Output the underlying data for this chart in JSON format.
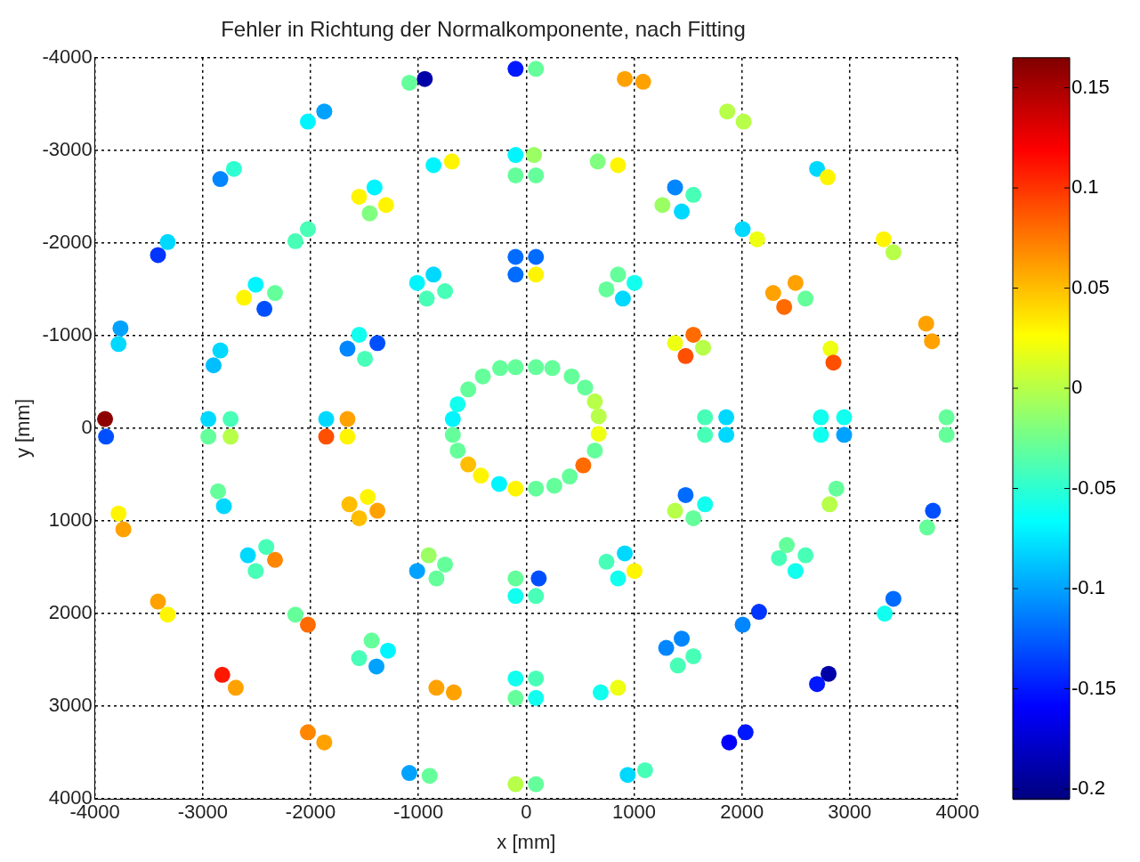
{
  "chart_data": {
    "type": "scatter",
    "title": "Fehler in Richtung der Normalkomponente, nach Fitting",
    "xlabel": "x [mm]",
    "ylabel": "y [mm]",
    "xlim": [
      -4000,
      4000
    ],
    "ylim": [
      4000,
      -4000
    ],
    "xticks": [
      -4000,
      -3000,
      -2000,
      -1000,
      0,
      1000,
      2000,
      3000,
      4000
    ],
    "yticks": [
      -4000,
      -3000,
      -2000,
      -1000,
      0,
      1000,
      2000,
      3000,
      4000
    ],
    "grid": true,
    "marker": "circle",
    "clim": [
      -0.205,
      0.165
    ],
    "cticks": [
      -0.2,
      -0.15,
      -0.1,
      -0.05,
      0,
      0.05,
      0.1,
      0.15
    ],
    "x": [
      -1084,
      -941,
      -99,
      90,
      914,
      1084,
      -2025,
      -1873,
      1864,
      2016,
      -2837,
      -2711,
      -860,
      -690,
      -99,
      72,
      -99,
      90,
      663,
      851,
      2697,
      2796,
      -1550,
      -1407,
      -1300,
      -1452,
      1380,
      1550,
      1263,
      1442,
      -3415,
      -3325,
      -2141,
      -2025,
      2007,
      2141,
      3315,
      3405,
      -99,
      90,
      -99,
      90,
      -2509,
      -2617,
      -2330,
      -2428,
      -1012,
      -860,
      -753,
      -923,
      851,
      1004,
      744,
      896,
      2290,
      2497,
      2392,
      2590,
      -3763,
      -3781,
      -2837,
      -2900,
      -1658,
      -1550,
      -1380,
      -1496,
      1380,
      1550,
      1478,
      1640,
      3709,
      3763,
      2822,
      2849,
      -242,
      -99,
      90,
      242,
      421,
      546,
      636,
      672,
      672,
      636,
      529,
      403,
      260,
      90,
      -99,
      -251,
      -421,
      -538,
      -636,
      -681,
      -681,
      -636,
      -538,
      -403,
      -3906,
      -3897,
      -2948,
      -2742,
      -2948,
      -2742,
      -1855,
      -1658,
      -1855,
      -1658,
      1658,
      1855,
      1658,
      1855,
      2733,
      2948,
      2733,
      2948,
      3898,
      3898,
      -2858,
      -2804,
      -1640,
      -1470,
      -1550,
      -1380,
      1478,
      1658,
      1380,
      1550,
      2876,
      2813,
      -3781,
      -3736,
      3772,
      3718,
      -2581,
      -2411,
      -2509,
      -2330,
      -1012,
      -905,
      -753,
      -833,
      744,
      914,
      851,
      1004,
      2344,
      2416,
      2497,
      2590,
      -99,
      116,
      -99,
      90,
      -3415,
      -3325,
      -2141,
      -2025,
      2007,
      2159,
      3324,
      3405,
      -1434,
      -1282,
      -1550,
      -1389,
      1298,
      1442,
      1550,
      1406,
      -2819,
      -2694,
      -99,
      90,
      -99,
      90,
      -833,
      -672,
      690,
      851,
      2804,
      2697,
      -2025,
      -1873,
      1882,
      2034,
      -1084,
      -896,
      -99,
      90,
      941,
      1102
    ],
    "values": [
      -3730,
      -3770,
      -3880,
      -3880,
      -3770,
      -3740,
      -3310,
      -3420,
      -3420,
      -3310,
      -2690,
      -2800,
      -2840,
      -2880,
      -2950,
      -2950,
      -2730,
      -2730,
      -2880,
      -2840,
      -2800,
      -2710,
      -2500,
      -2600,
      -2410,
      -2320,
      -2600,
      -2520,
      -2410,
      -2340,
      -1870,
      -2010,
      -2020,
      -2150,
      -2150,
      -2040,
      -2040,
      -1900,
      -1850,
      -1850,
      -1660,
      -1660,
      -1550,
      -1410,
      -1460,
      -1290,
      -1570,
      -1660,
      -1480,
      -1400,
      -1660,
      -1570,
      -1500,
      -1400,
      -1460,
      -1570,
      -1310,
      -1400,
      -1080,
      -910,
      -840,
      -680,
      -860,
      -1010,
      -920,
      -750,
      -920,
      -1010,
      -780,
      -870,
      -1130,
      -940,
      -860,
      -710,
      -650,
      -660,
      -660,
      -650,
      -560,
      -440,
      -290,
      -130,
      60,
      240,
      400,
      520,
      620,
      650,
      650,
      600,
      510,
      390,
      240,
      70,
      -100,
      -260,
      -420,
      -560,
      -100,
      90,
      -100,
      -100,
      90,
      90,
      -100,
      -100,
      90,
      90,
      -120,
      -120,
      70,
      70,
      -120,
      -120,
      70,
      70,
      -120,
      70,
      680,
      840,
      820,
      740,
      970,
      890,
      720,
      820,
      890,
      970,
      650,
      820,
      920,
      1090,
      890,
      1070,
      1370,
      1280,
      1540,
      1420,
      1540,
      1370,
      1470,
      1620,
      1440,
      1350,
      1620,
      1540,
      1400,
      1260,
      1540,
      1370,
      1620,
      1620,
      1810,
      1810,
      1870,
      2010,
      2010,
      2120,
      2120,
      1980,
      2000,
      1840,
      2290,
      2400,
      2480,
      2570,
      2370,
      2270,
      2460,
      2560,
      2660,
      2800,
      2700,
      2700,
      2910,
      2910,
      2800,
      2850,
      2850,
      2800,
      2650,
      2760,
      3280,
      3390,
      3390,
      3280,
      3720,
      3750,
      3840,
      3840,
      3740,
      3690
    ],
    "cvalues": [
      -0.03,
      -0.19,
      -0.15,
      -0.03,
      0.06,
      0.06,
      -0.07,
      -0.1,
      0,
      0,
      -0.11,
      -0.05,
      -0.07,
      0.03,
      -0.07,
      -0.01,
      -0.03,
      -0.03,
      -0.02,
      0.03,
      -0.08,
      0.03,
      0.03,
      -0.07,
      0.03,
      -0.02,
      -0.11,
      -0.04,
      -0.01,
      -0.08,
      -0.14,
      -0.08,
      -0.04,
      -0.04,
      -0.08,
      0.02,
      0.03,
      0,
      -0.12,
      -0.12,
      -0.12,
      0.03,
      -0.07,
      0.03,
      -0.03,
      -0.13,
      -0.07,
      -0.08,
      -0.04,
      -0.04,
      -0.03,
      -0.06,
      -0.03,
      -0.08,
      0.06,
      0.06,
      0.08,
      -0.03,
      -0.1,
      -0.08,
      -0.08,
      -0.09,
      -0.11,
      -0.06,
      -0.13,
      -0.04,
      0.02,
      0.08,
      0.09,
      0,
      0.06,
      0.06,
      0.02,
      0.09,
      -0.03,
      -0.03,
      -0.03,
      -0.03,
      -0.03,
      -0.03,
      0,
      0,
      0.02,
      -0.03,
      0.08,
      -0.03,
      -0.03,
      -0.03,
      0.03,
      -0.07,
      0.03,
      0.05,
      -0.03,
      -0.03,
      -0.07,
      -0.06,
      -0.03,
      -0.03,
      0.16,
      -0.13,
      -0.08,
      -0.04,
      -0.03,
      0,
      -0.08,
      0.06,
      0.09,
      0.03,
      -0.04,
      -0.08,
      -0.04,
      -0.08,
      -0.06,
      -0.06,
      -0.06,
      -0.1,
      -0.03,
      -0.03,
      -0.03,
      -0.08,
      0.05,
      0.03,
      0.05,
      0.06,
      -0.12,
      -0.06,
      0,
      -0.03,
      -0.03,
      0,
      0.03,
      0.06,
      -0.13,
      -0.03,
      -0.08,
      -0.04,
      -0.04,
      0.07,
      -0.1,
      -0.01,
      -0.03,
      -0.03,
      -0.04,
      -0.08,
      -0.06,
      0.03,
      -0.04,
      -0.03,
      -0.06,
      -0.04,
      -0.03,
      -0.13,
      -0.06,
      -0.04,
      0.06,
      0.03,
      -0.03,
      0.08,
      -0.11,
      -0.14,
      -0.06,
      -0.12,
      -0.03,
      -0.07,
      -0.04,
      -0.1,
      -0.11,
      -0.11,
      -0.04,
      -0.04,
      0.11,
      0.06,
      -0.06,
      -0.04,
      -0.03,
      -0.06,
      0.06,
      0.06,
      -0.06,
      0.02,
      -0.19,
      -0.15,
      0.07,
      0.06,
      -0.16,
      -0.15,
      -0.1,
      -0.03,
      0,
      -0.03,
      -0.08,
      -0.04
    ]
  }
}
